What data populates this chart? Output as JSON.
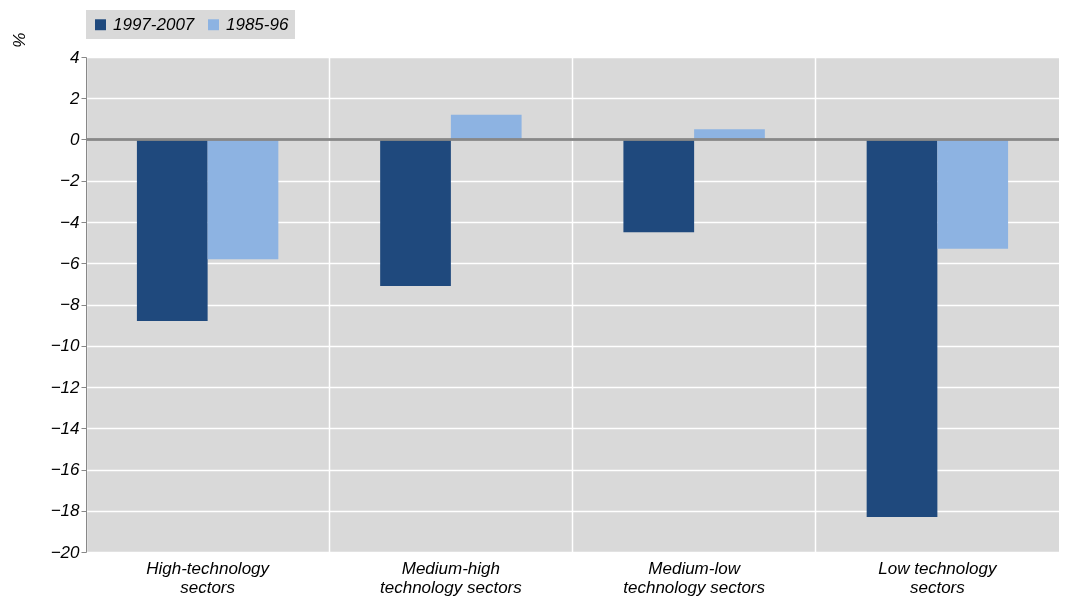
{
  "chart_data": {
    "type": "bar",
    "ylabel": "%",
    "categories": [
      "High-technology\nsectors",
      "Medium-high\ntechnology sectors",
      "Medium-low\ntechnology sectors",
      "Low technology\nsectors"
    ],
    "series": [
      {
        "name": "1997-2007",
        "color": "#1f497d",
        "values": [
          -8.8,
          -7.1,
          -4.5,
          -18.3
        ]
      },
      {
        "name": "1985-96",
        "color": "#8db3e2",
        "values": [
          -5.8,
          1.2,
          0.5,
          -5.3
        ]
      }
    ],
    "ylim": [
      -20,
      4
    ],
    "yticks": [
      -20,
      -18,
      -16,
      -14,
      -12,
      -10,
      -8,
      -6,
      -4,
      -2,
      0,
      2,
      4
    ],
    "grid": true,
    "legend": "top"
  }
}
